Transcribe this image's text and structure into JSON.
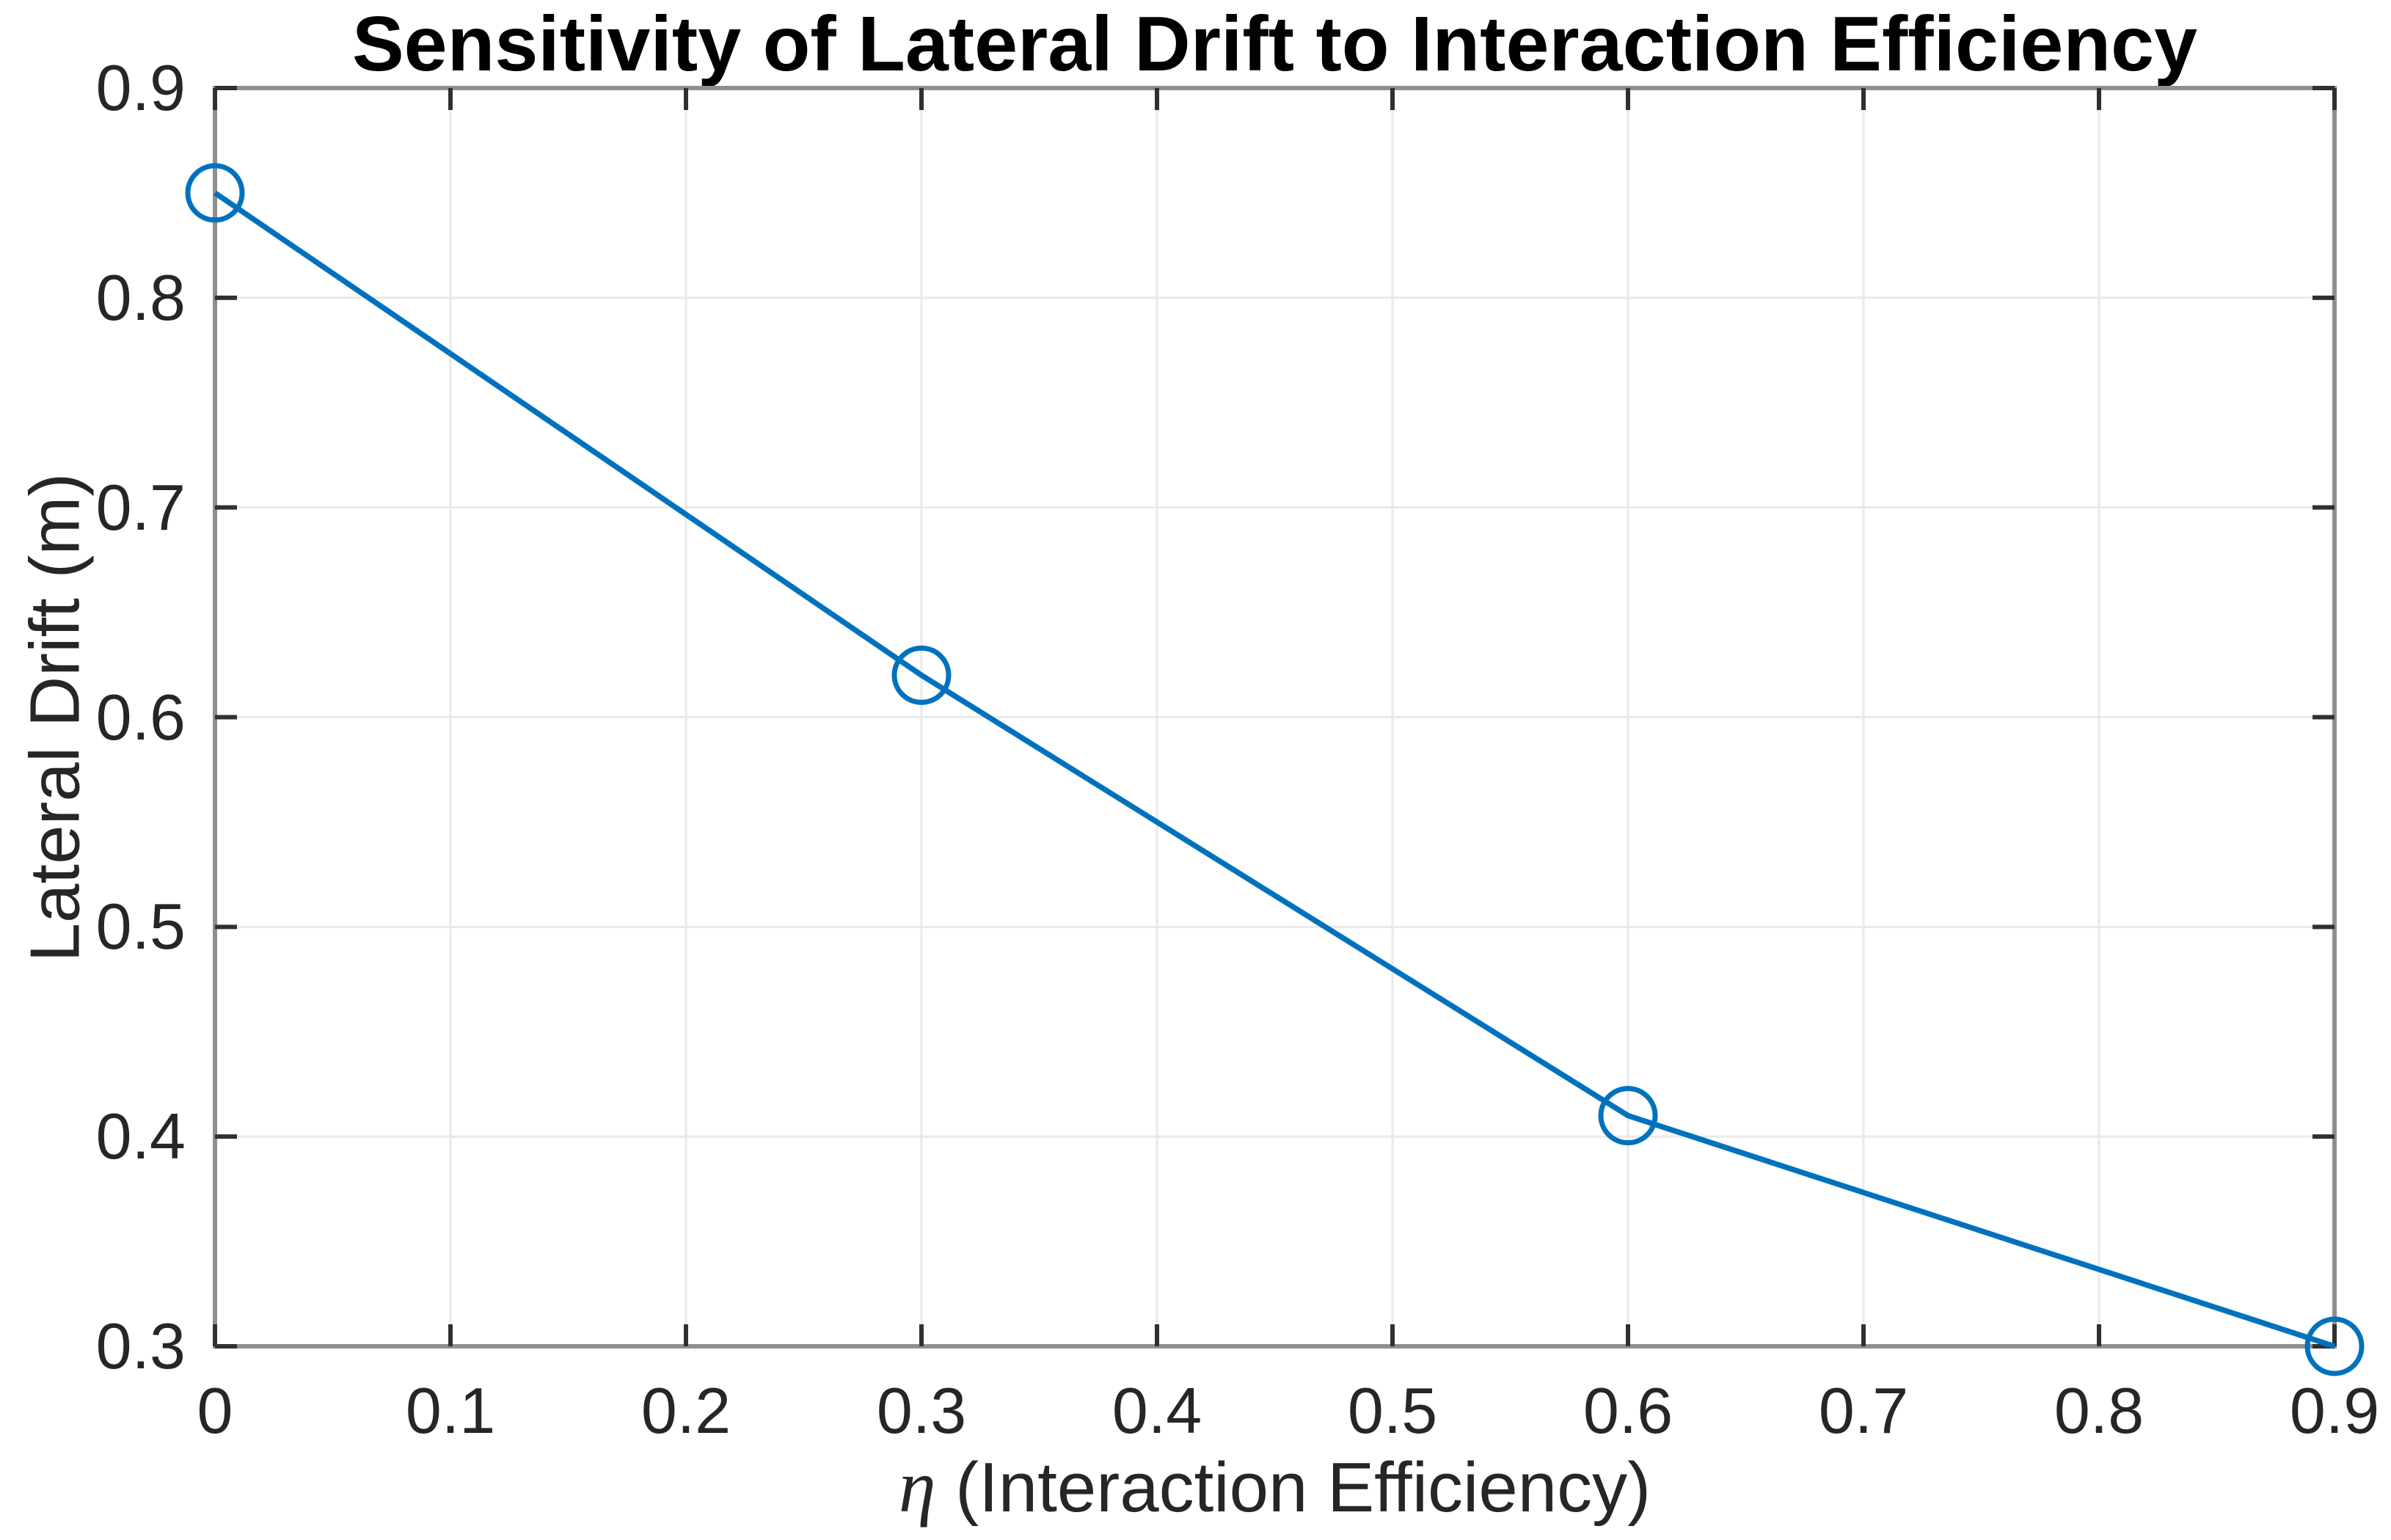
{
  "chart_data": {
    "type": "line",
    "title": "Sensitivity of Lateral Drift to Interaction Efficiency",
    "xlabel": "η (Interaction Efficiency)",
    "xlabel_symbol": "η",
    "xlabel_text": " (Interaction Efficiency)",
    "ylabel": "Lateral Drift (m)",
    "x": [
      0,
      0.3,
      0.6,
      0.9
    ],
    "y": [
      0.85,
      0.62,
      0.41,
      0.3
    ],
    "xlim": [
      0,
      0.9
    ],
    "ylim": [
      0.3,
      0.9
    ],
    "xticks": [
      "0",
      "0.1",
      "0.2",
      "0.3",
      "0.4",
      "0.5",
      "0.6",
      "0.7",
      "0.8",
      "0.9"
    ],
    "yticks": [
      "0.3",
      "0.4",
      "0.5",
      "0.6",
      "0.7",
      "0.8",
      "0.9"
    ],
    "grid": true,
    "legend": "none",
    "marker": "open-circle",
    "style": {
      "line_color": "#0072BD",
      "axis_color": "#8f8f8f",
      "tick_color": "#303030",
      "grid_color": "#e9e9e9",
      "text_color": "#262626",
      "title_color": "#000000",
      "background": "#ffffff"
    }
  }
}
